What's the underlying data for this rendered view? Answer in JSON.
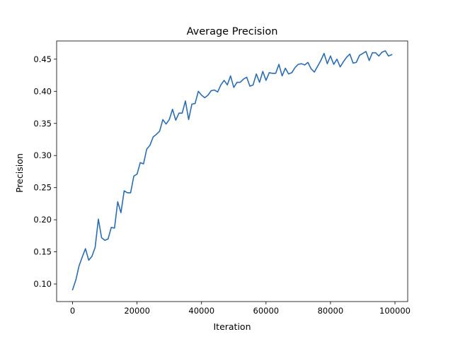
{
  "chart_data": {
    "type": "line",
    "title": "Average Precision",
    "xlabel": "Iteration",
    "ylabel": "Precision",
    "xlim": [
      -4950,
      103950
    ],
    "ylim": [
      0.0726,
      0.4784
    ],
    "xticks": [
      0,
      20000,
      40000,
      60000,
      80000,
      100000
    ],
    "xtick_labels": [
      "0",
      "20000",
      "40000",
      "60000",
      "80000",
      "100000"
    ],
    "yticks": [
      0.1,
      0.15,
      0.2,
      0.25,
      0.3,
      0.35,
      0.4,
      0.45
    ],
    "ytick_labels": [
      "0.10",
      "0.15",
      "0.20",
      "0.25",
      "0.30",
      "0.35",
      "0.40",
      "0.45"
    ],
    "grid": false,
    "line_color": "#2a6db5",
    "series": [
      {
        "name": "",
        "x": [
          0,
          1000,
          2000,
          3000,
          4000,
          5000,
          6000,
          7000,
          8000,
          9000,
          10000,
          11000,
          12000,
          13000,
          14000,
          15000,
          16000,
          17000,
          18000,
          19000,
          20000,
          21000,
          22000,
          23000,
          24000,
          25000,
          26000,
          27000,
          28000,
          29000,
          30000,
          31000,
          32000,
          33000,
          34000,
          35000,
          36000,
          37000,
          38000,
          39000,
          40000,
          41000,
          42000,
          43000,
          44000,
          45000,
          46000,
          47000,
          48000,
          49000,
          50000,
          51000,
          52000,
          53000,
          54000,
          55000,
          56000,
          57000,
          58000,
          59000,
          60000,
          61000,
          62000,
          63000,
          64000,
          65000,
          66000,
          67000,
          68000,
          69000,
          70000,
          71000,
          72000,
          73000,
          74000,
          75000,
          76000,
          77000,
          78000,
          79000,
          80000,
          81000,
          82000,
          83000,
          84000,
          85000,
          86000,
          87000,
          88000,
          89000,
          90000,
          91000,
          92000,
          93000,
          94000,
          95000,
          96000,
          97000,
          98000,
          99000
        ],
        "y": [
          0.091,
          0.106,
          0.128,
          0.142,
          0.155,
          0.137,
          0.143,
          0.157,
          0.201,
          0.172,
          0.168,
          0.17,
          0.188,
          0.187,
          0.228,
          0.211,
          0.245,
          0.242,
          0.242,
          0.268,
          0.271,
          0.289,
          0.287,
          0.31,
          0.316,
          0.329,
          0.333,
          0.338,
          0.356,
          0.349,
          0.356,
          0.372,
          0.355,
          0.366,
          0.366,
          0.385,
          0.356,
          0.38,
          0.381,
          0.4,
          0.394,
          0.39,
          0.394,
          0.401,
          0.402,
          0.399,
          0.41,
          0.417,
          0.41,
          0.424,
          0.406,
          0.414,
          0.414,
          0.419,
          0.422,
          0.408,
          0.41,
          0.427,
          0.414,
          0.431,
          0.417,
          0.429,
          0.428,
          0.428,
          0.442,
          0.424,
          0.436,
          0.427,
          0.429,
          0.437,
          0.442,
          0.443,
          0.441,
          0.445,
          0.435,
          0.43,
          0.439,
          0.448,
          0.459,
          0.443,
          0.455,
          0.442,
          0.45,
          0.438,
          0.446,
          0.453,
          0.458,
          0.444,
          0.445,
          0.456,
          0.459,
          0.462,
          0.448,
          0.46,
          0.46,
          0.455,
          0.461,
          0.463,
          0.455,
          0.457
        ]
      }
    ]
  }
}
